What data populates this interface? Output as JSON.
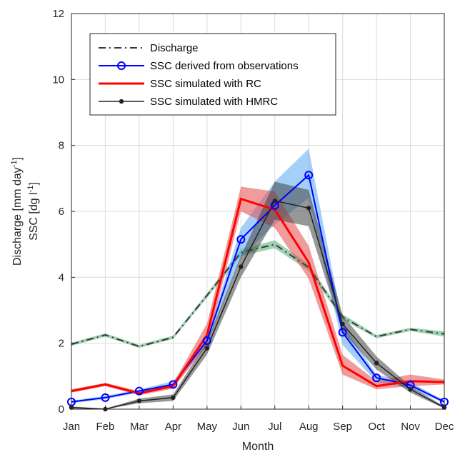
{
  "chart_data": {
    "type": "line",
    "categories": [
      "Jan",
      "Feb",
      "Mar",
      "Apr",
      "May",
      "Jun",
      "Jul",
      "Aug",
      "Sep",
      "Oct",
      "Nov",
      "Dec"
    ],
    "xlabel": "Month",
    "ylabel_line1": "Discharge [mm day",
    "ylabel_line1_sup": "-1",
    "ylabel_line1_end": "]",
    "ylabel_line2": "SSC [dg l",
    "ylabel_line2_sup": "-1",
    "ylabel_line2_end": "]",
    "ylim": [
      0,
      12
    ],
    "yticks": [
      0,
      2,
      4,
      6,
      8,
      10,
      12
    ],
    "grid": true,
    "legend_position": "top-left",
    "series": [
      {
        "name": "Discharge",
        "style": "dashdot",
        "color": "#3a3a3a",
        "band_color": "#4daf73",
        "values": [
          1.97,
          2.25,
          1.9,
          2.18,
          3.45,
          4.75,
          5.0,
          4.3,
          2.8,
          2.2,
          2.42,
          2.28
        ],
        "lower": [
          1.92,
          2.2,
          1.86,
          2.13,
          3.38,
          4.65,
          4.88,
          4.2,
          2.72,
          2.15,
          2.37,
          2.2
        ],
        "upper": [
          2.02,
          2.3,
          1.95,
          2.23,
          3.52,
          4.85,
          5.12,
          4.4,
          2.88,
          2.25,
          2.47,
          2.36
        ]
      },
      {
        "name": "SSC derived from observations",
        "style": "circle",
        "color": "#0000ff",
        "band_color": "#5aa9f0",
        "values": [
          0.22,
          0.35,
          0.55,
          0.75,
          2.08,
          5.15,
          6.18,
          7.1,
          2.33,
          0.95,
          0.73,
          0.22
        ],
        "lower": [
          0.18,
          0.3,
          0.5,
          0.68,
          1.95,
          4.6,
          5.6,
          6.4,
          1.95,
          0.82,
          0.63,
          0.18
        ],
        "upper": [
          0.26,
          0.4,
          0.6,
          0.85,
          2.2,
          5.5,
          6.9,
          7.9,
          2.6,
          1.05,
          0.82,
          0.26
        ]
      },
      {
        "name": "SSC simulated with RC",
        "style": "solid",
        "color": "#ff0000",
        "band_color": "#e34a4a",
        "values": [
          0.55,
          0.75,
          0.48,
          0.7,
          2.25,
          6.38,
          6.05,
          4.45,
          1.32,
          0.7,
          0.85,
          0.82
        ],
        "lower": [
          0.5,
          0.7,
          0.42,
          0.62,
          1.95,
          6.0,
          5.5,
          3.95,
          1.05,
          0.6,
          0.7,
          0.75
        ],
        "upper": [
          0.6,
          0.8,
          0.55,
          0.78,
          2.6,
          6.75,
          6.6,
          4.95,
          1.65,
          0.85,
          1.05,
          0.9
        ]
      },
      {
        "name": "SSC simulated with HMRC",
        "style": "dot",
        "color": "#222222",
        "band_color": "#444444",
        "values": [
          0.05,
          0.0,
          0.25,
          0.35,
          1.85,
          4.32,
          6.32,
          6.1,
          2.58,
          1.4,
          0.6,
          0.05
        ],
        "lower": [
          0.02,
          0.0,
          0.18,
          0.25,
          1.65,
          4.0,
          5.75,
          5.55,
          2.35,
          1.2,
          0.5,
          0.02
        ],
        "upper": [
          0.08,
          0.02,
          0.32,
          0.45,
          2.05,
          4.65,
          6.9,
          6.65,
          2.85,
          1.6,
          0.7,
          0.08
        ]
      }
    ]
  }
}
